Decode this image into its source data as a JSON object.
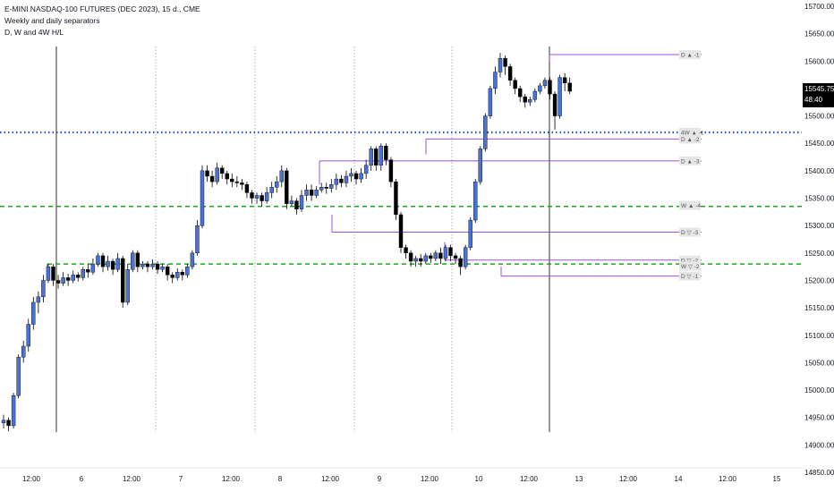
{
  "header": {
    "symbol_line": "E-MINI NASDAQ-100 FUTURES (DEC 2023), 15 ⁠d., CME",
    "indicator1": "Weekly and daily separators",
    "indicator2": "D, W and 4W H/L"
  },
  "price_badge": {
    "price": "15545.75",
    "timer": "48:40",
    "bg_color": "#000000"
  },
  "colors": {
    "up_candle": "#4a72d6",
    "down_candle": "#000000",
    "dotted_blue": "#2750d6",
    "dashed_green": "#1fa51f",
    "level_purple": "#9b4fe0",
    "separator": "#555555"
  },
  "chart_data": {
    "type": "candlestick",
    "ylim": [
      14850,
      15700
    ],
    "y_ticks": [
      "15700.00",
      "15650.00",
      "15600.00",
      "15550.00",
      "15500.00",
      "15450.00",
      "15400.00",
      "15350.00",
      "15300.00",
      "15250.00",
      "15200.00",
      "15150.00",
      "15100.00",
      "15050.00",
      "15000.00",
      "14950.00",
      "14900.00",
      "14850.00"
    ],
    "x_ticks": [
      "12:00",
      "6",
      "12:00",
      "7",
      "12:00",
      "8",
      "12:00",
      "9",
      "12:00",
      "10",
      "12:00",
      "13",
      "12:00",
      "14",
      "12:00",
      "15"
    ],
    "horizontal_lines": [
      {
        "name": "4W high",
        "price": 15470,
        "style": "dotted-blue"
      },
      {
        "name": "weekly level",
        "price": 15335,
        "style": "dashed-green"
      },
      {
        "name": "weekly level low",
        "price": 15230,
        "style": "dashed-green"
      }
    ],
    "level_labels": [
      {
        "text": "D ▲ -1",
        "price": 15612
      },
      {
        "text": "4W ▲ -1",
        "price": 15470
      },
      {
        "text": "D ▲ -2",
        "price": 15458
      },
      {
        "text": "D ▲ -3",
        "price": 15418
      },
      {
        "text": "W ▲ -4",
        "price": 15337
      },
      {
        "text": "D ▽ -3",
        "price": 15288
      },
      {
        "text": "D ▽ -2",
        "price": 15237
      },
      {
        "text": "W ▽ -2",
        "price": 15226
      },
      {
        "text": "D ▽ -1",
        "price": 15208
      }
    ],
    "candles": [
      [
        14940,
        14945,
        14930,
        14955
      ],
      [
        14945,
        14935,
        14925,
        14950
      ],
      [
        14935,
        14990,
        14930,
        14995
      ],
      [
        14990,
        15060,
        14985,
        15065
      ],
      [
        15060,
        15080,
        15050,
        15090
      ],
      [
        15080,
        15120,
        15070,
        15130
      ],
      [
        15120,
        15160,
        15110,
        15170
      ],
      [
        15160,
        15170,
        15140,
        15180
      ],
      [
        15170,
        15200,
        15160,
        15210
      ],
      [
        15200,
        15225,
        15195,
        15230
      ],
      [
        15225,
        15200,
        15190,
        15230
      ],
      [
        15200,
        15195,
        15185,
        15210
      ],
      [
        15195,
        15205,
        15190,
        15215
      ],
      [
        15205,
        15200,
        15190,
        15212
      ],
      [
        15200,
        15210,
        15195,
        15218
      ],
      [
        15210,
        15205,
        15198,
        15215
      ],
      [
        15205,
        15220,
        15200,
        15225
      ],
      [
        15220,
        15215,
        15205,
        15230
      ],
      [
        15215,
        15230,
        15210,
        15240
      ],
      [
        15230,
        15245,
        15225,
        15250
      ],
      [
        15245,
        15225,
        15215,
        15250
      ],
      [
        15225,
        15235,
        15218,
        15245
      ],
      [
        15235,
        15220,
        15210,
        15240
      ],
      [
        15220,
        15240,
        15215,
        15250
      ],
      [
        15240,
        15160,
        15150,
        15245
      ],
      [
        15160,
        15220,
        15155,
        15230
      ],
      [
        15220,
        15250,
        15215,
        15255
      ],
      [
        15250,
        15225,
        15215,
        15255
      ],
      [
        15225,
        15230,
        15220,
        15235
      ],
      [
        15230,
        15225,
        15215,
        15235
      ],
      [
        15225,
        15230,
        15220,
        15238
      ],
      [
        15230,
        15220,
        15212,
        15235
      ],
      [
        15220,
        15225,
        15215,
        15230
      ],
      [
        15225,
        15210,
        15200,
        15230
      ],
      [
        15210,
        15205,
        15195,
        15215
      ],
      [
        15205,
        15215,
        15200,
        15222
      ],
      [
        15215,
        15210,
        15200,
        15220
      ],
      [
        15210,
        15225,
        15205,
        15230
      ],
      [
        15225,
        15250,
        15220,
        15255
      ],
      [
        15250,
        15300,
        15245,
        15310
      ],
      [
        15300,
        15400,
        15295,
        15410
      ],
      [
        15400,
        15390,
        15380,
        15410
      ],
      [
        15390,
        15380,
        15370,
        15400
      ],
      [
        15380,
        15405,
        15375,
        15415
      ],
      [
        15405,
        15395,
        15385,
        15410
      ],
      [
        15395,
        15385,
        15375,
        15400
      ],
      [
        15385,
        15380,
        15370,
        15395
      ],
      [
        15380,
        15378,
        15370,
        15390
      ],
      [
        15378,
        15375,
        15365,
        15385
      ],
      [
        15375,
        15360,
        15350,
        15380
      ],
      [
        15360,
        15350,
        15340,
        15365
      ],
      [
        15350,
        15355,
        15340,
        15360
      ],
      [
        15355,
        15345,
        15335,
        15360
      ],
      [
        15345,
        15360,
        15340,
        15370
      ],
      [
        15360,
        15370,
        15350,
        15380
      ],
      [
        15370,
        15380,
        15360,
        15390
      ],
      [
        15380,
        15400,
        15370,
        15410
      ],
      [
        15400,
        15340,
        15330,
        15405
      ],
      [
        15340,
        15345,
        15335,
        15355
      ],
      [
        15345,
        15330,
        15320,
        15350
      ],
      [
        15330,
        15355,
        15325,
        15365
      ],
      [
        15355,
        15365,
        15345,
        15375
      ],
      [
        15365,
        15355,
        15345,
        15375
      ],
      [
        15355,
        15365,
        15350,
        15372
      ],
      [
        15365,
        15370,
        15360,
        15378
      ],
      [
        15370,
        15368,
        15358,
        15378
      ],
      [
        15368,
        15375,
        15360,
        15385
      ],
      [
        15375,
        15385,
        15365,
        15395
      ],
      [
        15385,
        15378,
        15370,
        15392
      ],
      [
        15378,
        15390,
        15370,
        15400
      ],
      [
        15390,
        15395,
        15380,
        15405
      ],
      [
        15395,
        15385,
        15375,
        15400
      ],
      [
        15385,
        15395,
        15378,
        15405
      ],
      [
        15395,
        15410,
        15385,
        15420
      ],
      [
        15410,
        15440,
        15400,
        15445
      ],
      [
        15440,
        15410,
        15400,
        15445
      ],
      [
        15410,
        15445,
        15400,
        15450
      ],
      [
        15445,
        15420,
        15410,
        15450
      ],
      [
        15420,
        15380,
        15370,
        15425
      ],
      [
        15380,
        15320,
        15310,
        15385
      ],
      [
        15320,
        15260,
        15250,
        15325
      ],
      [
        15260,
        15250,
        15240,
        15265
      ],
      [
        15250,
        15235,
        15225,
        15255
      ],
      [
        15235,
        15240,
        15225,
        15245
      ],
      [
        15240,
        15235,
        15225,
        15248
      ],
      [
        15235,
        15245,
        15230,
        15250
      ],
      [
        15245,
        15240,
        15232,
        15250
      ],
      [
        15240,
        15250,
        15235,
        15255
      ],
      [
        15250,
        15240,
        15230,
        15260
      ],
      [
        15240,
        15260,
        15235,
        15265
      ],
      [
        15260,
        15245,
        15235,
        15265
      ],
      [
        15245,
        15240,
        15230,
        15250
      ],
      [
        15240,
        15225,
        15210,
        15245
      ],
      [
        15225,
        15260,
        15220,
        15265
      ],
      [
        15260,
        15310,
        15255,
        15315
      ],
      [
        15310,
        15380,
        15305,
        15385
      ],
      [
        15380,
        15440,
        15375,
        15445
      ],
      [
        15440,
        15500,
        15435,
        15505
      ],
      [
        15500,
        15550,
        15495,
        15555
      ],
      [
        15550,
        15580,
        15540,
        15590
      ],
      [
        15580,
        15605,
        15570,
        15615
      ],
      [
        15605,
        15590,
        15575,
        15610
      ],
      [
        15590,
        15565,
        15555,
        15595
      ],
      [
        15565,
        15550,
        15540,
        15570
      ],
      [
        15550,
        15535,
        15525,
        15555
      ],
      [
        15535,
        15525,
        15515,
        15540
      ],
      [
        15525,
        15530,
        15518,
        15535
      ],
      [
        15530,
        15545,
        15525,
        15550
      ],
      [
        15545,
        15555,
        15540,
        15560
      ],
      [
        15555,
        15565,
        15550,
        15570
      ],
      [
        15565,
        15540,
        15530,
        15570
      ],
      [
        15540,
        15500,
        15475,
        15545
      ],
      [
        15500,
        15570,
        15495,
        15575
      ],
      [
        15570,
        15560,
        15545,
        15578
      ],
      [
        15560,
        15545,
        15540,
        15570
      ]
    ]
  }
}
